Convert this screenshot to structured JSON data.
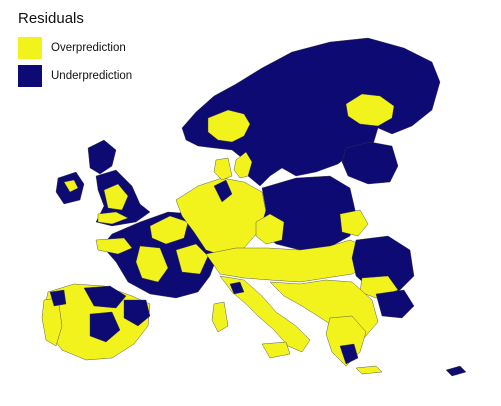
{
  "legend": {
    "title": "Residuals",
    "items": [
      {
        "label": "Overprediction",
        "color": "#f2f21d"
      },
      {
        "label": "Underprediction",
        "color": "#0d0a73"
      }
    ]
  },
  "map": {
    "region": "Europe (NUTS regions)",
    "border_color": "#444444",
    "categories": {
      "over": "Overprediction",
      "under": "Underprediction"
    }
  }
}
